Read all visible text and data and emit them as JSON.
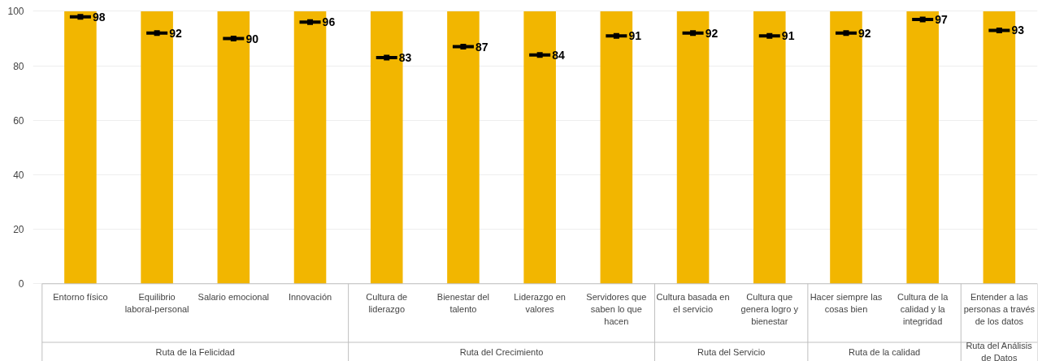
{
  "chart_data": {
    "type": "bar",
    "categories": [
      "Entorno físico",
      "Equilibrio laboral-personal",
      "Salario emocional",
      "Innovación",
      "Cultura de liderazgo",
      "Bienestar del talento",
      "Liderazgo en valores",
      "Servidores que saben lo que hacen",
      "Cultura basada en el servicio",
      "Cultura que genera logro y bienestar",
      "Hacer siempre las cosas bien",
      "Cultura de la calidad y la integridad",
      "Entender a las personas a través de los datos"
    ],
    "series": [
      {
        "color": "#f2b600",
        "values": [
          100,
          100,
          100,
          100,
          100,
          100,
          100,
          100,
          100,
          100,
          100,
          100,
          100
        ]
      },
      {
        "type": "scatter",
        "color": "#000000",
        "data_labels": true,
        "values": [
          98,
          92,
          90,
          96,
          83,
          87,
          84,
          91,
          92,
          91,
          92,
          97,
          93
        ]
      }
    ],
    "annotations": [
      "Ruta de la Felicidad",
      "Ruta del Crecimiento",
      "Ruta del Servicio",
      "Ruta de la calidad",
      "Ruta del Análisis de Datos"
    ],
    "ylim": [
      0,
      100
    ],
    "yticks": [
      0,
      20,
      40,
      60,
      80,
      100
    ],
    "grid": "y"
  }
}
